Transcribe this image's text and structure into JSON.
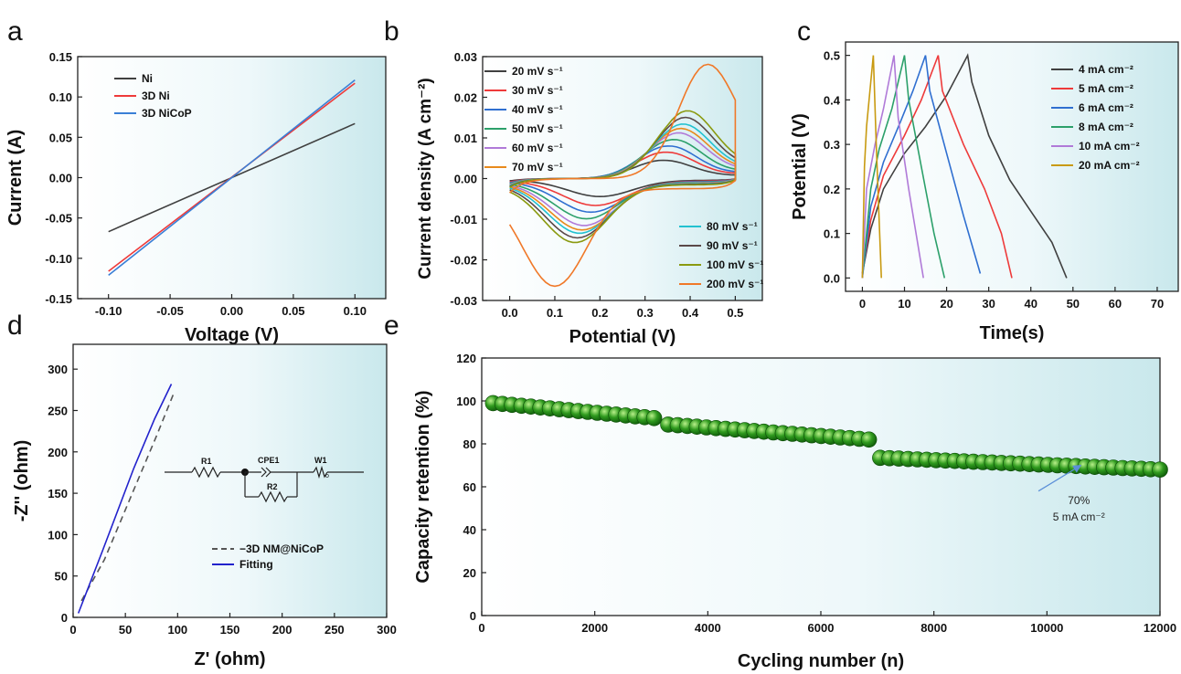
{
  "panels": [
    {
      "id": "a",
      "letter": "a",
      "type": "line",
      "xlabel": "Voltage (V)",
      "ylabel": "Current (A)",
      "xlim": [
        -0.125,
        0.125
      ],
      "ylim": [
        -0.15,
        0.15
      ],
      "xticks": [
        -0.1,
        -0.05,
        0.0,
        0.05,
        0.1
      ],
      "xtick_decimals": 2,
      "yticks": [
        -0.15,
        -0.1,
        -0.05,
        0.0,
        0.05,
        0.1,
        0.15
      ],
      "ytick_decimals": 2,
      "legend": "top-left",
      "series": [
        {
          "name": "Ni",
          "color": "#404040",
          "dash": false,
          "x": [
            -0.1,
            0.1
          ],
          "y": [
            -0.067,
            0.067
          ]
        },
        {
          "name": "3D Ni",
          "color": "#ee3a3a",
          "dash": false,
          "x": [
            -0.1,
            0.1
          ],
          "y": [
            -0.116,
            0.117
          ]
        },
        {
          "name": "3D NiCoP",
          "color": "#3a7fd6",
          "dash": false,
          "x": [
            -0.1,
            0.1
          ],
          "y": [
            -0.121,
            0.121
          ]
        }
      ]
    },
    {
      "id": "b",
      "letter": "b",
      "type": "line",
      "xlabel": "Potential (V)",
      "ylabel": "Current density  (A cm⁻²)",
      "xlim": [
        -0.06,
        0.56
      ],
      "ylim": [
        -0.03,
        0.03
      ],
      "xticks": [
        0.0,
        0.1,
        0.2,
        0.3,
        0.4,
        0.5
      ],
      "xtick_decimals": 1,
      "yticks": [
        -0.03,
        -0.02,
        -0.01,
        0.0,
        0.01,
        0.02,
        0.03
      ],
      "ytick_decimals": 2,
      "legend": "top-left and bottom-right",
      "cv_scans": [
        {
          "name": "20 mV s⁻¹",
          "color": "#404040",
          "ia": 0.0045,
          "ic": -0.004,
          "ea": 0.34,
          "ec": 0.2
        },
        {
          "name": "30 mV s⁻¹",
          "color": "#ee3a3a",
          "ia": 0.0065,
          "ic": -0.006,
          "ea": 0.345,
          "ec": 0.19
        },
        {
          "name": "40 mV s⁻¹",
          "color": "#2f6fd0",
          "ia": 0.008,
          "ic": -0.0075,
          "ea": 0.35,
          "ec": 0.18
        },
        {
          "name": "50 mV s⁻¹",
          "color": "#2ca06a",
          "ia": 0.0095,
          "ic": -0.009,
          "ea": 0.36,
          "ec": 0.17
        },
        {
          "name": "60 mV s⁻¹",
          "color": "#b07ad8",
          "ia": 0.011,
          "ic": -0.0105,
          "ea": 0.37,
          "ec": 0.165
        },
        {
          "name": "70 mV s⁻¹",
          "color": "#e88a1c",
          "ia": 0.012,
          "ic": -0.0115,
          "ea": 0.375,
          "ec": 0.16
        },
        {
          "name": "80 mV s⁻¹",
          "color": "#22c1d0",
          "ia": 0.013,
          "ic": -0.0122,
          "ea": 0.38,
          "ec": 0.155
        },
        {
          "name": "90 mV s⁻¹",
          "color": "#5a4848",
          "ia": 0.0145,
          "ic": -0.0132,
          "ea": 0.385,
          "ec": 0.15
        },
        {
          "name": "100 mV s⁻¹",
          "color": "#8a9a10",
          "ia": 0.016,
          "ic": -0.0142,
          "ea": 0.39,
          "ec": 0.145
        },
        {
          "name": "200 mV s⁻¹",
          "color": "#f07828",
          "ia": 0.0258,
          "ic": -0.024,
          "ea": 0.435,
          "ec": 0.1
        }
      ]
    },
    {
      "id": "c",
      "letter": "c",
      "type": "line",
      "xlabel": "Time(s)",
      "ylabel": "Potential (V)",
      "xlim": [
        -4,
        75
      ],
      "ylim": [
        -0.03,
        0.53
      ],
      "xticks": [
        0,
        10,
        20,
        30,
        40,
        50,
        60,
        70
      ],
      "xtick_decimals": 0,
      "yticks": [
        0.0,
        0.1,
        0.2,
        0.3,
        0.4,
        0.5
      ],
      "ytick_decimals": 1,
      "legend": "top-right",
      "series": [
        {
          "name": "4 mA cm⁻²",
          "color": "#404040",
          "dash": false,
          "x": [
            0,
            2,
            5,
            10,
            15,
            20,
            25,
            26,
            30,
            35,
            40,
            45,
            48.5
          ],
          "y": [
            0.01,
            0.11,
            0.2,
            0.28,
            0.34,
            0.41,
            0.5,
            0.44,
            0.32,
            0.22,
            0.15,
            0.08,
            0.0
          ]
        },
        {
          "name": "5 mA cm⁻²",
          "color": "#ee3a3a",
          "dash": false,
          "x": [
            0,
            2,
            5,
            10,
            14,
            18,
            19,
            24,
            29,
            33,
            35.5
          ],
          "y": [
            0.01,
            0.13,
            0.23,
            0.32,
            0.4,
            0.5,
            0.42,
            0.3,
            0.2,
            0.1,
            0.0
          ]
        },
        {
          "name": "6 mA cm⁻²",
          "color": "#2f6fd0",
          "dash": false,
          "x": [
            0,
            2,
            5,
            9,
            12,
            15,
            16,
            20,
            24,
            28
          ],
          "y": [
            0.0,
            0.16,
            0.26,
            0.35,
            0.42,
            0.5,
            0.42,
            0.28,
            0.14,
            0.01
          ]
        },
        {
          "name": "8 mA cm⁻²",
          "color": "#2ca06a",
          "dash": false,
          "x": [
            0,
            2,
            4,
            7,
            10,
            11,
            14,
            17,
            19.5
          ],
          "y": [
            0.0,
            0.2,
            0.29,
            0.38,
            0.5,
            0.4,
            0.25,
            0.1,
            0.0
          ]
        },
        {
          "name": "10 mA cm⁻²",
          "color": "#b07ad8",
          "dash": false,
          "x": [
            0,
            1,
            3,
            5,
            7.5,
            8.5,
            11,
            14.5
          ],
          "y": [
            0.0,
            0.2,
            0.3,
            0.38,
            0.5,
            0.36,
            0.2,
            0.0
          ]
        },
        {
          "name": "20 mA cm⁻²",
          "color": "#c89a10",
          "dash": false,
          "x": [
            0,
            0.5,
            1,
            2,
            2.6,
            3.3,
            4.5
          ],
          "y": [
            0.0,
            0.25,
            0.34,
            0.44,
            0.5,
            0.3,
            0.0
          ]
        }
      ]
    },
    {
      "id": "d",
      "letter": "d",
      "type": "line",
      "xlabel": "Z' (ohm)",
      "ylabel": "-Z'' (ohm)",
      "xlim": [
        0,
        300
      ],
      "ylim": [
        0,
        330
      ],
      "xticks": [
        0,
        50,
        100,
        150,
        200,
        250,
        300
      ],
      "xtick_decimals": 0,
      "yticks": [
        0,
        50,
        100,
        150,
        200,
        250,
        300
      ],
      "ytick_decimals": 0,
      "legend": "lower-middle",
      "circuit": {
        "r1": "R1",
        "cpe": "CPE1",
        "w": "W1",
        "r2": "R2",
        "wsub": "o"
      },
      "series": [
        {
          "name": "−3D NM@NiCoP",
          "color": "#555555",
          "dash": true,
          "x": [
            8,
            30,
            60,
            80,
            97
          ],
          "y": [
            20,
            70,
            160,
            220,
            273
          ]
        },
        {
          "name": "Fitting",
          "color": "#2222cc",
          "dash": false,
          "x": [
            5,
            28,
            58,
            78,
            94
          ],
          "y": [
            5,
            80,
            180,
            240,
            282
          ]
        }
      ]
    },
    {
      "id": "e",
      "letter": "e",
      "type": "scatter",
      "xlabel": "Cycling number (n)",
      "ylabel": "Capacity retention (%)",
      "xlim": [
        0,
        12000
      ],
      "ylim": [
        0,
        120
      ],
      "xticks": [
        0,
        2000,
        4000,
        6000,
        8000,
        10000,
        12000
      ],
      "xtick_decimals": 0,
      "yticks": [
        0,
        20,
        40,
        60,
        80,
        100,
        120
      ],
      "ytick_decimals": 0,
      "segments": [
        {
          "x0": 200,
          "x1": 3050,
          "y0": 99,
          "y1": 92,
          "n": 18
        },
        {
          "x0": 3300,
          "x1": 6850,
          "y0": 89,
          "y1": 82,
          "n": 22
        },
        {
          "x0": 7050,
          "x1": 12000,
          "y0": 73.5,
          "y1": 68,
          "n": 31
        }
      ],
      "annotation": {
        "line1": "70%",
        "line2": "5 mA cm⁻²",
        "arrow_from": [
          9850,
          58
        ],
        "arrow_to": [
          10600,
          70
        ],
        "text_at": [
          9950,
          52
        ]
      }
    }
  ]
}
